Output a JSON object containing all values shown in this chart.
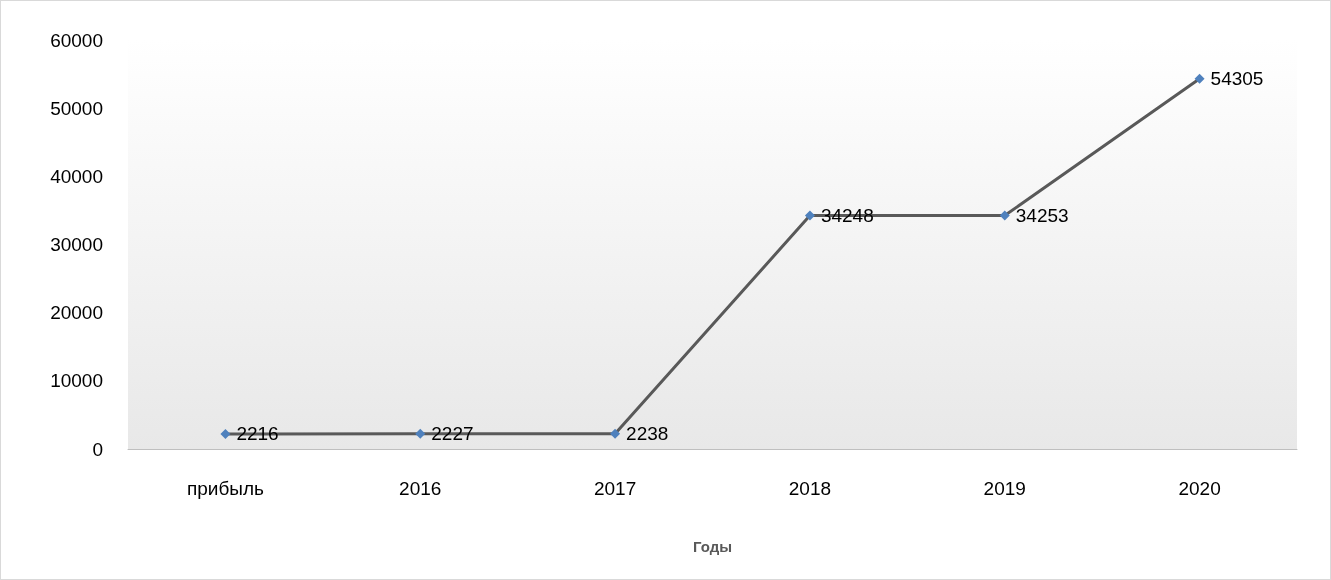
{
  "chart_data": {
    "type": "line",
    "xlabel": "Годы",
    "categories": [
      "прибыль",
      "2016",
      "2017",
      "2018",
      "2019",
      "2020"
    ],
    "series": [
      {
        "color": "#595959",
        "colors": [
          "#4f81bd",
          "#4f81bd",
          "#4f81bd",
          "#4f81bd",
          "#4f81bd",
          "#4f81bd"
        ],
        "values": [
          2216,
          2227,
          2238,
          34248,
          34253,
          54305
        ]
      }
    ],
    "ylim": [
      0,
      60000
    ],
    "yticks": [
      0,
      10000,
      20000,
      30000,
      40000,
      50000,
      60000
    ],
    "grid": false,
    "marker": "diamond",
    "line_style": "solid",
    "data_labels": true
  }
}
